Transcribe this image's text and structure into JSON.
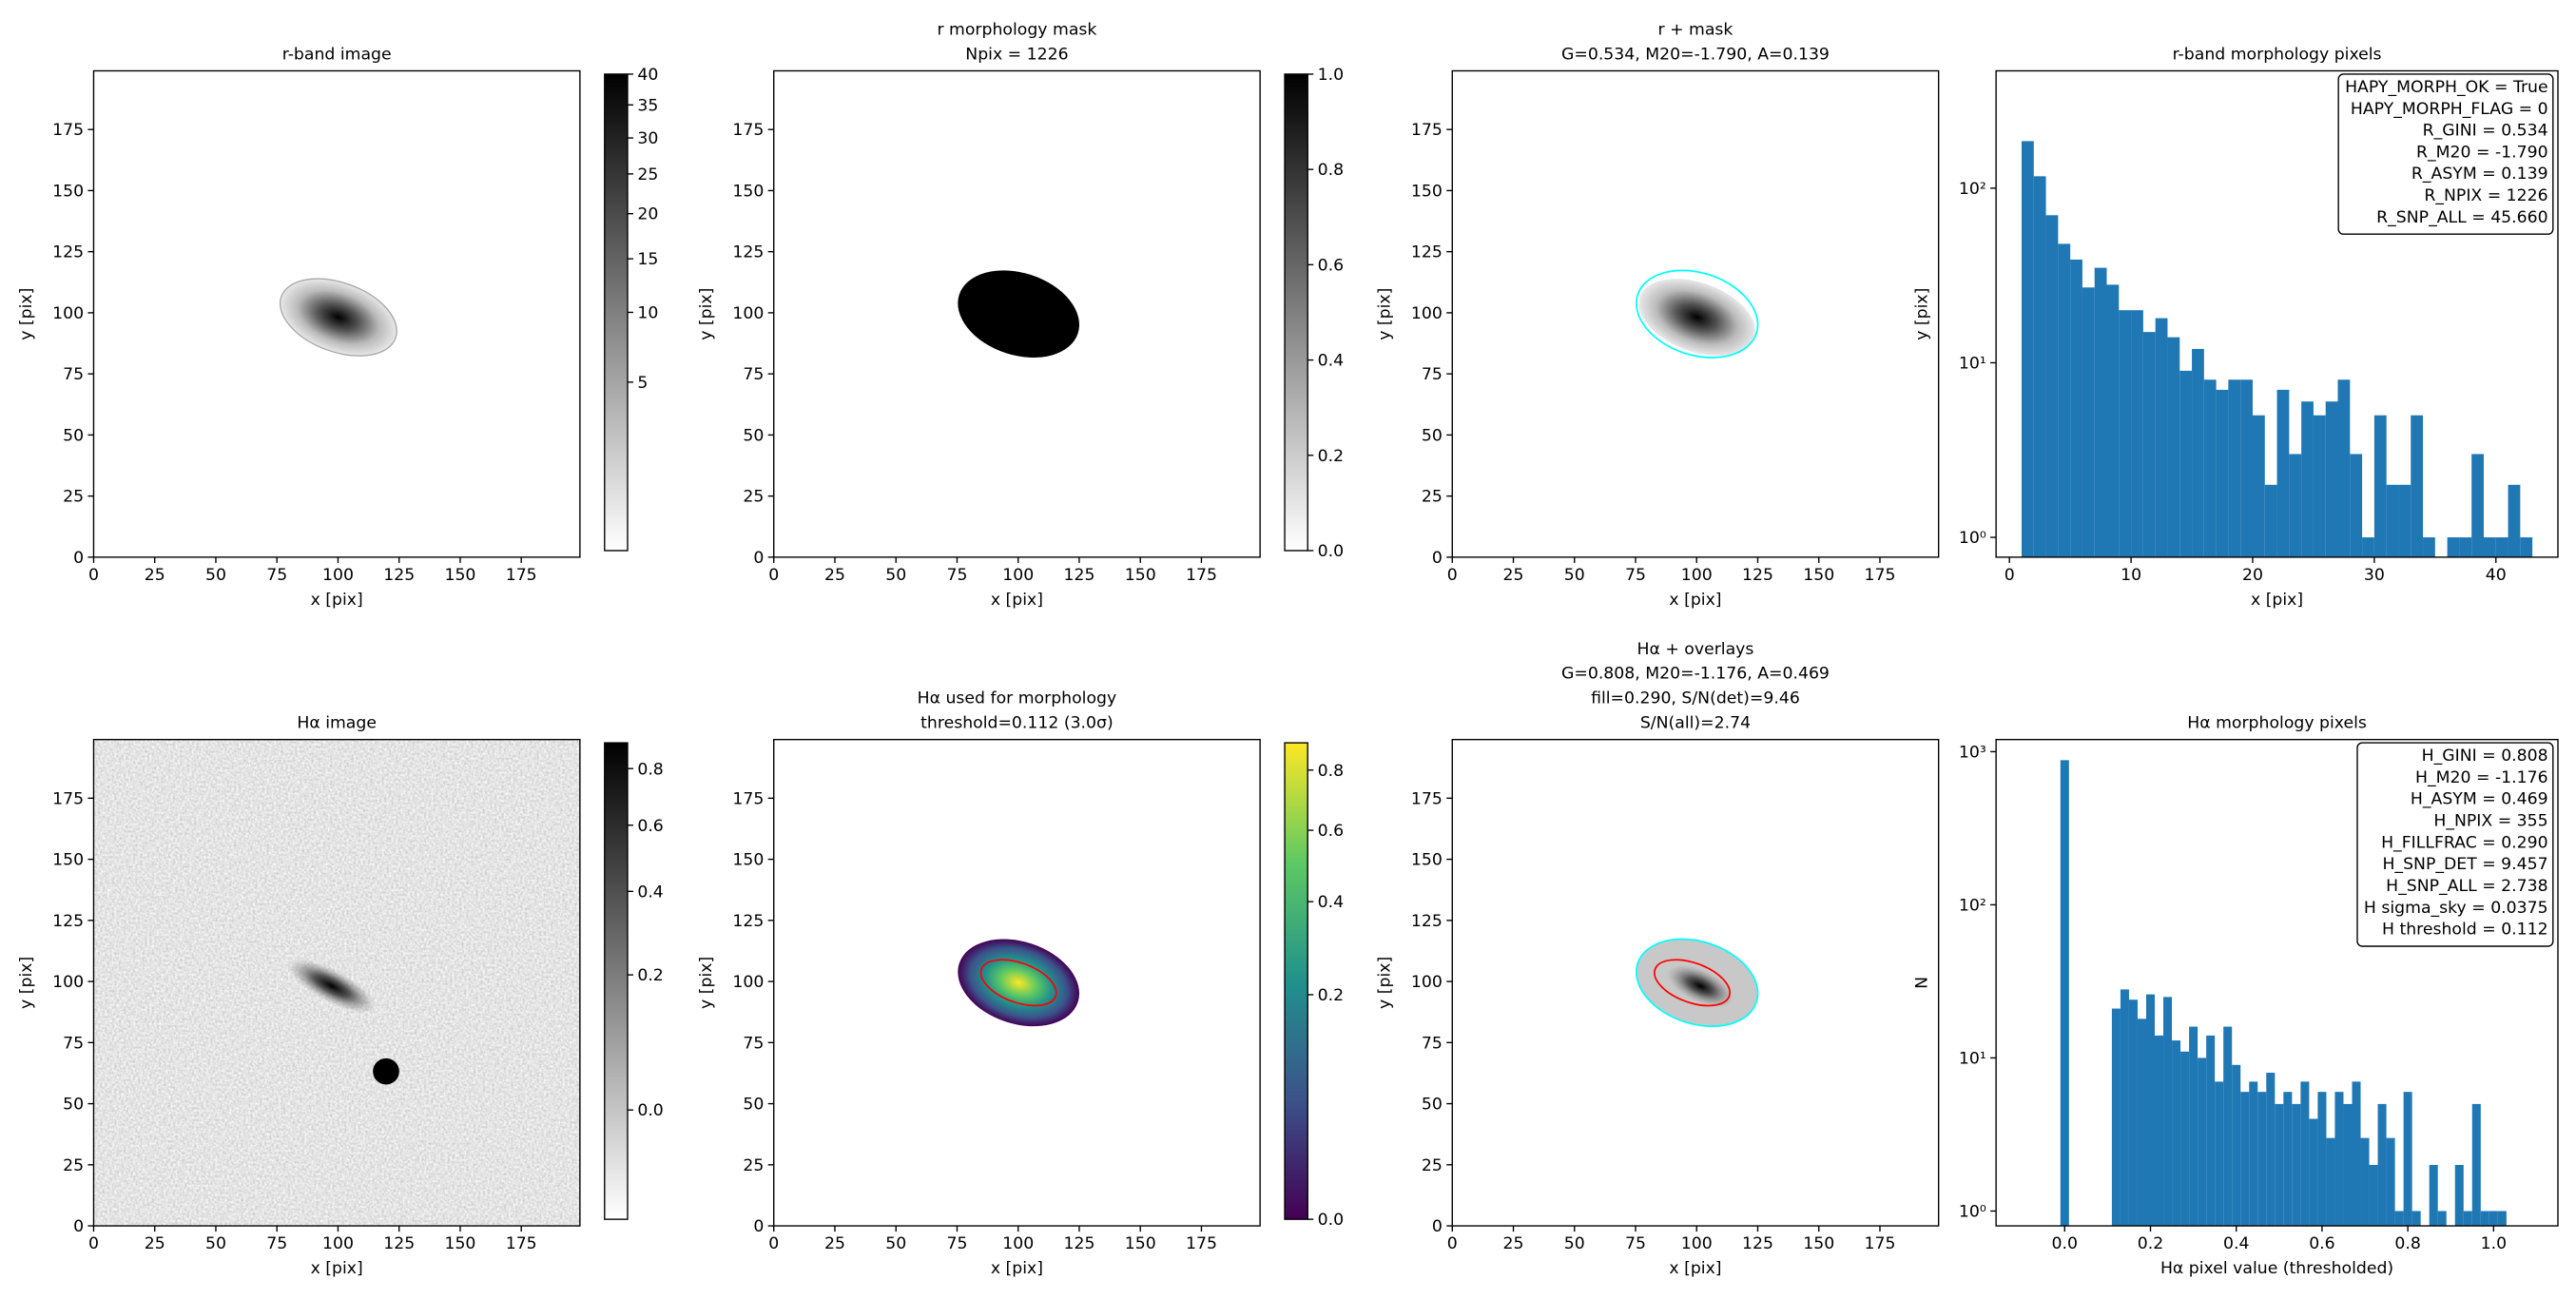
{
  "chart_data": [
    {
      "type": "image",
      "title": [
        "r-band image"
      ],
      "xlabel": "x [pix]",
      "ylabel": "y [pix]",
      "xlim": [
        0,
        199
      ],
      "ylim": [
        0,
        199
      ],
      "xticks": [
        0,
        25,
        50,
        75,
        100,
        125,
        150,
        175
      ],
      "yticks": [
        0,
        25,
        50,
        75,
        100,
        125,
        150,
        175
      ],
      "colorbar": {
        "cmap": "gray_r",
        "scale": "sqrt",
        "lim": [
          0,
          40
        ],
        "ticks": [
          5,
          10,
          15,
          20,
          25,
          30,
          35,
          40
        ]
      }
    },
    {
      "type": "image",
      "title": [
        "r morphology mask",
        "Npix = 1226"
      ],
      "xlabel": "x [pix]",
      "ylabel": "y [pix]",
      "xlim": [
        0,
        199
      ],
      "ylim": [
        0,
        199
      ],
      "xticks": [
        0,
        25,
        50,
        75,
        100,
        125,
        150,
        175
      ],
      "yticks": [
        0,
        25,
        50,
        75,
        100,
        125,
        150,
        175
      ],
      "colorbar": {
        "cmap": "gray_r",
        "scale": "linear",
        "lim": [
          0,
          1
        ],
        "ticks": [
          {
            "value": 0,
            "label": "0.0"
          },
          {
            "value": 0.2,
            "label": "0.2"
          },
          {
            "value": 0.4,
            "label": "0.4"
          },
          {
            "value": 0.6,
            "label": "0.6"
          },
          {
            "value": 0.8,
            "label": "0.8"
          },
          {
            "value": 1,
            "label": "1.0"
          }
        ]
      }
    },
    {
      "type": "image",
      "title": [
        "r + mask",
        "G=0.534, M20=-1.790, A=0.139"
      ],
      "xlabel": "x [pix]",
      "ylabel": "y [pix]",
      "xlim": [
        0,
        199
      ],
      "ylim": [
        0,
        199
      ],
      "xticks": [
        0,
        25,
        50,
        75,
        100,
        125,
        150,
        175
      ],
      "yticks": [
        0,
        25,
        50,
        75,
        100,
        125,
        150,
        175
      ]
    },
    {
      "type": "histogram",
      "title": [
        "r-band morphology pixels"
      ],
      "xlabel": "x [pix]",
      "ylabel": "y [pix]",
      "color": "#1f77b4",
      "log_y": true,
      "xlim": [
        -1.1,
        45.1
      ],
      "ylim": [
        0.77,
        470
      ],
      "xticks": [
        0,
        10,
        20,
        30,
        40
      ],
      "yticks": [
        {
          "value": 1,
          "label": "10⁰"
        },
        {
          "value": 10,
          "label": "10¹"
        },
        {
          "value": 100,
          "label": "10²"
        }
      ],
      "bins": [
        1,
        2,
        3,
        4,
        5,
        6,
        7,
        8,
        9,
        10,
        11,
        12,
        13,
        14,
        15,
        16,
        17,
        18,
        19,
        20,
        21,
        22,
        23,
        24,
        25,
        26,
        27,
        28,
        29,
        30,
        31,
        32,
        33,
        34,
        35,
        36,
        37,
        38,
        39,
        40,
        41,
        42,
        43
      ],
      "counts": [
        186,
        117,
        70,
        48,
        39,
        27,
        35,
        28,
        20,
        20,
        15,
        18,
        14,
        9,
        12,
        8,
        7,
        8,
        8,
        5,
        2,
        7,
        3,
        6,
        5,
        6,
        8,
        3,
        1,
        5,
        2,
        2,
        5,
        1,
        0,
        1,
        1,
        3,
        1,
        1,
        2,
        1
      ],
      "annotation": [
        "HAPY_MORPH_OK = True",
        "HAPY_MORPH_FLAG = 0",
        "R_GINI = 0.534",
        "R_M20 = -1.790",
        "R_ASYM = 0.139",
        "R_NPIX = 1226",
        "R_SNP_ALL = 45.660"
      ]
    },
    {
      "type": "image",
      "title": [
        "Hα image"
      ],
      "xlabel": "x [pix]",
      "ylabel": "y [pix]",
      "xlim": [
        0,
        199
      ],
      "ylim": [
        0,
        199
      ],
      "xticks": [
        0,
        25,
        50,
        75,
        100,
        125,
        150,
        175
      ],
      "yticks": [
        0,
        25,
        50,
        75,
        100,
        125,
        150,
        175
      ],
      "colorbar": {
        "cmap": "gray_r",
        "scale": "sqrt",
        "lim": [
          -0.05,
          0.9
        ],
        "ticks": [
          {
            "value": 0,
            "label": "0.0"
          },
          {
            "value": 0.2,
            "label": "0.2"
          },
          {
            "value": 0.4,
            "label": "0.4"
          },
          {
            "value": 0.6,
            "label": "0.6"
          },
          {
            "value": 0.8,
            "label": "0.8"
          }
        ]
      }
    },
    {
      "type": "image",
      "title": [
        "Hα used for morphology",
        "threshold=0.112 (3.0σ)"
      ],
      "xlabel": "x [pix]",
      "ylabel": "y [pix]",
      "xlim": [
        0,
        199
      ],
      "ylim": [
        0,
        199
      ],
      "xticks": [
        0,
        25,
        50,
        75,
        100,
        125,
        150,
        175
      ],
      "yticks": [
        0,
        25,
        50,
        75,
        100,
        125,
        150,
        175
      ],
      "colorbar": {
        "cmap": "viridis",
        "scale": "sqrt",
        "lim": [
          0,
          0.9
        ],
        "ticks": [
          {
            "value": 0,
            "label": "0.0"
          },
          {
            "value": 0.2,
            "label": "0.2"
          },
          {
            "value": 0.4,
            "label": "0.4"
          },
          {
            "value": 0.6,
            "label": "0.6"
          },
          {
            "value": 0.8,
            "label": "0.8"
          }
        ]
      }
    },
    {
      "type": "image",
      "title": [
        "Hα + overlays",
        "G=0.808, M20=-1.176, A=0.469",
        "fill=0.290, S/N(det)=9.46",
        "S/N(all)=2.74"
      ],
      "xlabel": "x [pix]",
      "ylabel": "y [pix]",
      "xlim": [
        0,
        199
      ],
      "ylim": [
        0,
        199
      ],
      "xticks": [
        0,
        25,
        50,
        75,
        100,
        125,
        150,
        175
      ],
      "yticks": [
        0,
        25,
        50,
        75,
        100,
        125,
        150,
        175
      ]
    },
    {
      "type": "histogram",
      "title": [
        "Hα morphology pixels"
      ],
      "xlabel": "Hα pixel value (thresholded)",
      "ylabel": "N",
      "color": "#1f77b4",
      "log_y": true,
      "xlim": [
        -0.16,
        1.15
      ],
      "ylim": [
        0.8,
        1200
      ],
      "xticks": [
        {
          "value": 0,
          "label": "0.0"
        },
        {
          "value": 0.2,
          "label": "0.2"
        },
        {
          "value": 0.4,
          "label": "0.4"
        },
        {
          "value": 0.6,
          "label": "0.6"
        },
        {
          "value": 0.8,
          "label": "0.8"
        },
        {
          "value": 1,
          "label": "1.0"
        }
      ],
      "yticks": [
        {
          "value": 1,
          "label": "10⁰"
        },
        {
          "value": 10,
          "label": "10¹"
        },
        {
          "value": 100,
          "label": "10²"
        },
        {
          "value": 1000,
          "label": "10³"
        }
      ],
      "bins": [
        -0.01,
        0.01,
        0.03,
        0.05,
        0.07,
        0.09,
        0.11,
        0.13,
        0.15,
        0.17,
        0.19,
        0.21,
        0.23,
        0.25,
        0.27,
        0.29,
        0.31,
        0.33,
        0.35,
        0.37,
        0.39,
        0.41,
        0.43,
        0.45,
        0.47,
        0.49,
        0.51,
        0.53,
        0.55,
        0.57,
        0.59,
        0.61,
        0.63,
        0.65,
        0.67,
        0.69,
        0.71,
        0.73,
        0.75,
        0.77,
        0.79,
        0.81,
        0.83,
        0.85,
        0.87,
        0.89,
        0.91,
        0.93,
        0.95,
        0.97,
        0.99,
        1.01,
        1.03
      ],
      "counts": [
        880,
        0,
        0,
        0,
        0,
        0,
        21,
        28,
        24,
        18,
        26,
        14,
        25,
        13,
        11,
        16,
        10,
        14,
        7,
        16,
        9,
        6,
        7,
        6,
        8,
        5,
        6,
        5,
        7,
        4,
        6,
        3,
        6,
        5,
        7,
        3,
        2,
        5,
        3,
        1,
        6,
        1,
        0,
        2,
        1,
        0,
        2,
        1,
        5,
        1,
        1,
        1
      ],
      "annotation": [
        "H_GINI = 0.808",
        "H_M20 = -1.176",
        "H_ASYM = 0.469",
        "H_NPIX = 355",
        "H_FILLFRAC = 0.290",
        "H_SNP_DET = 9.457",
        "H_SNP_ALL = 2.738",
        "H sigma_sky = 0.0375",
        "H threshold = 0.112"
      ]
    }
  ]
}
